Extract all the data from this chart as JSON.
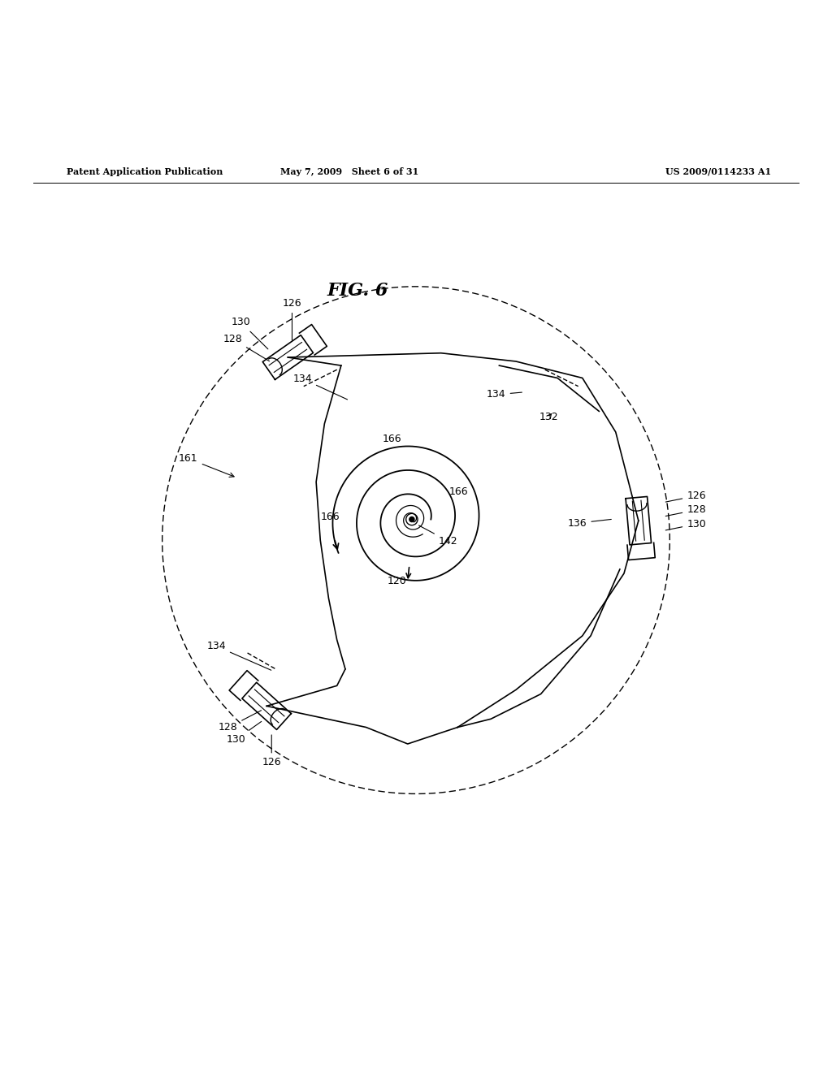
{
  "title": "FIG. 6",
  "header_left": "Patent Application Publication",
  "header_mid": "May 7, 2009   Sheet 6 of 31",
  "header_right": "US 2009/0114233 A1",
  "bg_color": "#ffffff",
  "line_color": "#000000",
  "fig_width": 10.24,
  "fig_height": 13.2
}
